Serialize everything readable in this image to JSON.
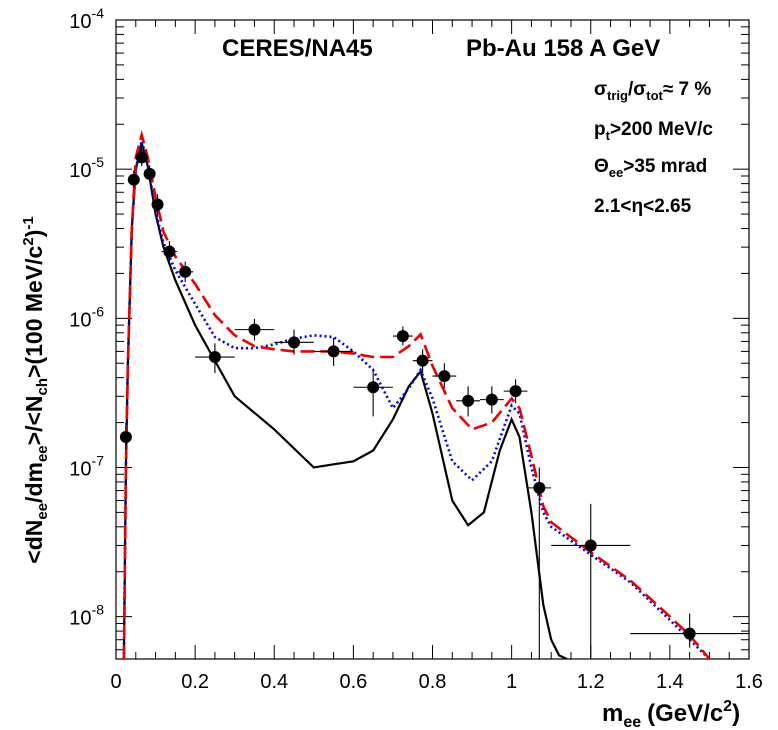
{
  "chart_data": {
    "type": "line",
    "title_left": "CERES/NA45",
    "title_right": "Pb-Au 158 A GeV",
    "xlabel_main": "m",
    "xlabel_sub": "ee",
    "xlabel_unit": "(GeV/c",
    "xlabel_unit_sup": "2",
    "xlabel_unit_end": ")",
    "ylabel": "<dN_ee/dm_ee>/<N_ch>(100 MeV/c^2)^-1",
    "x_scale": "linear",
    "y_scale": "log",
    "xlim": [
      0,
      1.6
    ],
    "ylim": [
      5.2e-09,
      0.0001
    ],
    "x_ticks": [
      "0",
      "0.2",
      "0.4",
      "0.6",
      "0.8",
      "1",
      "1.2",
      "1.4",
      "1.6"
    ],
    "y_ticks": [
      {
        "base": "10",
        "exp": "-8"
      },
      {
        "base": "10",
        "exp": "-7"
      },
      {
        "base": "10",
        "exp": "-6"
      },
      {
        "base": "10",
        "exp": "-5"
      },
      {
        "base": "10",
        "exp": "-4"
      }
    ],
    "annotations": [
      {
        "parts": [
          [
            "σ",
            ""
          ],
          [
            "trig",
            "sub"
          ],
          [
            "/σ",
            ""
          ],
          [
            "tot",
            "sub"
          ],
          [
            "≈ 7 %",
            ""
          ]
        ]
      },
      {
        "parts": [
          [
            "p",
            ""
          ],
          [
            "t",
            "sub"
          ],
          [
            ">200 MeV/c",
            ""
          ]
        ]
      },
      {
        "parts": [
          [
            "Θ",
            ""
          ],
          [
            "ee",
            "sub"
          ],
          [
            ">35 mrad",
            ""
          ]
        ]
      },
      {
        "parts": [
          [
            "2.1<η<2.65",
            ""
          ]
        ]
      }
    ],
    "points": [
      {
        "x": 0.025,
        "y": 1.6e-07,
        "xerr": 0.005,
        "ylo": 1.3e-07,
        "yhi": 2e-07
      },
      {
        "x": 0.045,
        "y": 8.5e-06,
        "xerr": 0.01,
        "ylo": 7.5e-06,
        "yhi": 9.8e-06
      },
      {
        "x": 0.065,
        "y": 1.2e-05,
        "xerr": 0.01,
        "ylo": 1.05e-05,
        "yhi": 1.4e-05
      },
      {
        "x": 0.085,
        "y": 9.3e-06,
        "xerr": 0.01,
        "ylo": 8.2e-06,
        "yhi": 1.06e-05
      },
      {
        "x": 0.105,
        "y": 5.8e-06,
        "xerr": 0.01,
        "ylo": 4.9e-06,
        "yhi": 6.8e-06
      },
      {
        "x": 0.135,
        "y": 2.8e-06,
        "xerr": 0.02,
        "ylo": 2.4e-06,
        "yhi": 3.3e-06
      },
      {
        "x": 0.175,
        "y": 2.05e-06,
        "xerr": 0.02,
        "ylo": 1.75e-06,
        "yhi": 2.4e-06
      },
      {
        "x": 0.25,
        "y": 5.5e-07,
        "xerr": 0.05,
        "ylo": 4.3e-07,
        "yhi": 6.8e-07
      },
      {
        "x": 0.35,
        "y": 8.4e-07,
        "xerr": 0.05,
        "ylo": 7.1e-07,
        "yhi": 9.9e-07
      },
      {
        "x": 0.45,
        "y": 6.9e-07,
        "xerr": 0.05,
        "ylo": 5.7e-07,
        "yhi": 8.4e-07
      },
      {
        "x": 0.55,
        "y": 6e-07,
        "xerr": 0.05,
        "ylo": 4.8e-07,
        "yhi": 7.4e-07
      },
      {
        "x": 0.65,
        "y": 3.45e-07,
        "xerr": 0.05,
        "ylo": 2.2e-07,
        "yhi": 4.6e-07
      },
      {
        "x": 0.725,
        "y": 7.6e-07,
        "xerr": 0.025,
        "ylo": 6.6e-07,
        "yhi": 8.8e-07
      },
      {
        "x": 0.775,
        "y": 5.2e-07,
        "xerr": 0.025,
        "ylo": 4.3e-07,
        "yhi": 6.2e-07
      },
      {
        "x": 0.83,
        "y": 4.1e-07,
        "xerr": 0.03,
        "ylo": 3.4e-07,
        "yhi": 5e-07
      },
      {
        "x": 0.89,
        "y": 2.8e-07,
        "xerr": 0.03,
        "ylo": 2.2e-07,
        "yhi": 3.5e-07
      },
      {
        "x": 0.95,
        "y": 2.85e-07,
        "xerr": 0.03,
        "ylo": 2.3e-07,
        "yhi": 3.5e-07
      },
      {
        "x": 1.01,
        "y": 3.25e-07,
        "xerr": 0.03,
        "ylo": 2.7e-07,
        "yhi": 3.9e-07
      },
      {
        "x": 1.07,
        "y": 7.3e-08,
        "xerr": 0.03,
        "ylo": 5.2e-09,
        "yhi": 1e-07
      },
      {
        "x": 1.2,
        "y": 3e-08,
        "xerr": 0.1,
        "ylo": 5.2e-09,
        "yhi": 5.7e-08
      },
      {
        "x": 1.45,
        "y": 7.7e-09,
        "xerr": 0.15,
        "ylo": 6.2e-09,
        "yhi": 1.05e-08
      }
    ],
    "series": [
      {
        "style": "solid",
        "color": "#000000",
        "x": [
          0.02,
          0.025,
          0.03,
          0.04,
          0.05,
          0.065,
          0.08,
          0.1,
          0.12,
          0.15,
          0.2,
          0.3,
          0.4,
          0.5,
          0.55,
          0.6,
          0.65,
          0.7,
          0.74,
          0.77,
          0.8,
          0.85,
          0.89,
          0.93,
          0.97,
          1.0,
          1.02,
          1.05,
          1.08,
          1.1,
          1.12,
          1.14
        ],
        "y": [
          5.2e-09,
          1e-07,
          5e-07,
          4e-06,
          1e-05,
          1.5e-05,
          1.05e-05,
          5e-06,
          3e-06,
          1.8e-06,
          9e-07,
          3e-07,
          1.8e-07,
          1e-07,
          1.05e-07,
          1.1e-07,
          1.3e-07,
          2.1e-07,
          3.5e-07,
          4.4e-07,
          2.3e-07,
          6e-08,
          4.1e-08,
          5e-08,
          1.3e-07,
          2.1e-07,
          1.6e-07,
          5e-08,
          1.2e-08,
          7e-09,
          5.5e-09,
          5.2e-09
        ]
      },
      {
        "style": "dotted",
        "color": "#0000ee",
        "x": [
          0.02,
          0.025,
          0.03,
          0.04,
          0.05,
          0.065,
          0.08,
          0.1,
          0.12,
          0.15,
          0.2,
          0.25,
          0.3,
          0.35,
          0.4,
          0.45,
          0.5,
          0.55,
          0.6,
          0.65,
          0.7,
          0.74,
          0.77,
          0.8,
          0.85,
          0.9,
          0.95,
          1.0,
          1.02,
          1.05,
          1.08,
          1.1,
          1.2,
          1.3,
          1.4,
          1.45,
          1.5
        ],
        "y": [
          5.2e-09,
          1e-07,
          5e-07,
          4e-06,
          1e-05,
          1.55e-05,
          1.1e-05,
          5.2e-06,
          3.2e-06,
          2.1e-06,
          1.25e-06,
          7.5e-07,
          6.3e-07,
          6.3e-07,
          6.7e-07,
          7.3e-07,
          7.7e-07,
          7.5e-07,
          6e-07,
          4.5e-07,
          2.5e-07,
          3.4e-07,
          4.5e-07,
          2.9e-07,
          1.1e-07,
          8.2e-08,
          1.1e-07,
          2.6e-07,
          2.3e-07,
          1e-07,
          5e-08,
          4e-08,
          2.6e-08,
          1.7e-08,
          9.5e-09,
          7e-09,
          5.2e-09
        ]
      },
      {
        "style": "dashed",
        "color": "#ee0000",
        "x": [
          0.02,
          0.025,
          0.03,
          0.04,
          0.05,
          0.065,
          0.08,
          0.1,
          0.12,
          0.15,
          0.2,
          0.25,
          0.3,
          0.35,
          0.4,
          0.45,
          0.5,
          0.55,
          0.6,
          0.65,
          0.7,
          0.74,
          0.77,
          0.8,
          0.85,
          0.9,
          0.95,
          1.0,
          1.02,
          1.05,
          1.08,
          1.1,
          1.2,
          1.3,
          1.4,
          1.45,
          1.5
        ],
        "y": [
          5.2e-09,
          1e-07,
          5e-07,
          4e-06,
          1.2e-05,
          1.7e-05,
          1.2e-05,
          6.5e-06,
          3.8e-06,
          2.6e-06,
          1.7e-06,
          1.05e-06,
          7.7e-07,
          6.5e-07,
          6.2e-07,
          6e-07,
          6e-07,
          6e-07,
          5.8e-07,
          5.5e-07,
          5.5e-07,
          6.5e-07,
          7.8e-07,
          4.8e-07,
          2.5e-07,
          1.8e-07,
          2e-07,
          2.9e-07,
          2.5e-07,
          1.2e-07,
          5.5e-08,
          4.3e-08,
          2.7e-08,
          1.75e-08,
          1e-08,
          7.5e-09,
          5.2e-09
        ]
      }
    ]
  }
}
